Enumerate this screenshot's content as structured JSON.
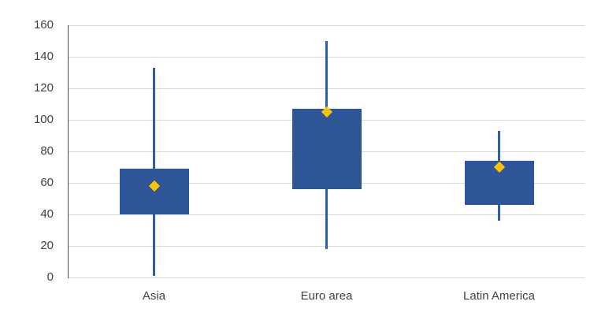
{
  "chart_data": {
    "type": "boxplot",
    "title": "",
    "xlabel": "",
    "ylabel": "",
    "categories": [
      "Asia",
      "Euro area",
      "Latin America"
    ],
    "series": [
      {
        "category": "Asia",
        "whisker_min": 1,
        "q1": 40,
        "mean": 58,
        "q3": 69,
        "whisker_max": 133
      },
      {
        "category": "Euro area",
        "whisker_min": 18,
        "q1": 56,
        "mean": 105,
        "q3": 107,
        "whisker_max": 150
      },
      {
        "category": "Latin America",
        "whisker_min": 36,
        "q1": 46,
        "mean": 70,
        "q3": 74,
        "whisker_max": 93
      }
    ],
    "ylim": [
      0,
      160
    ],
    "y_ticks": [
      0,
      20,
      40,
      60,
      80,
      100,
      120,
      140,
      160
    ],
    "grid": true,
    "legend": false,
    "marker": "diamond",
    "colors": {
      "box_fill": "#2E5597",
      "whisker": "#2F5FA5",
      "mean_marker": "#FFC000",
      "gridline": "#D9D9D9",
      "axis_line": "#4A4A4A",
      "tick_label": "#404040"
    }
  }
}
